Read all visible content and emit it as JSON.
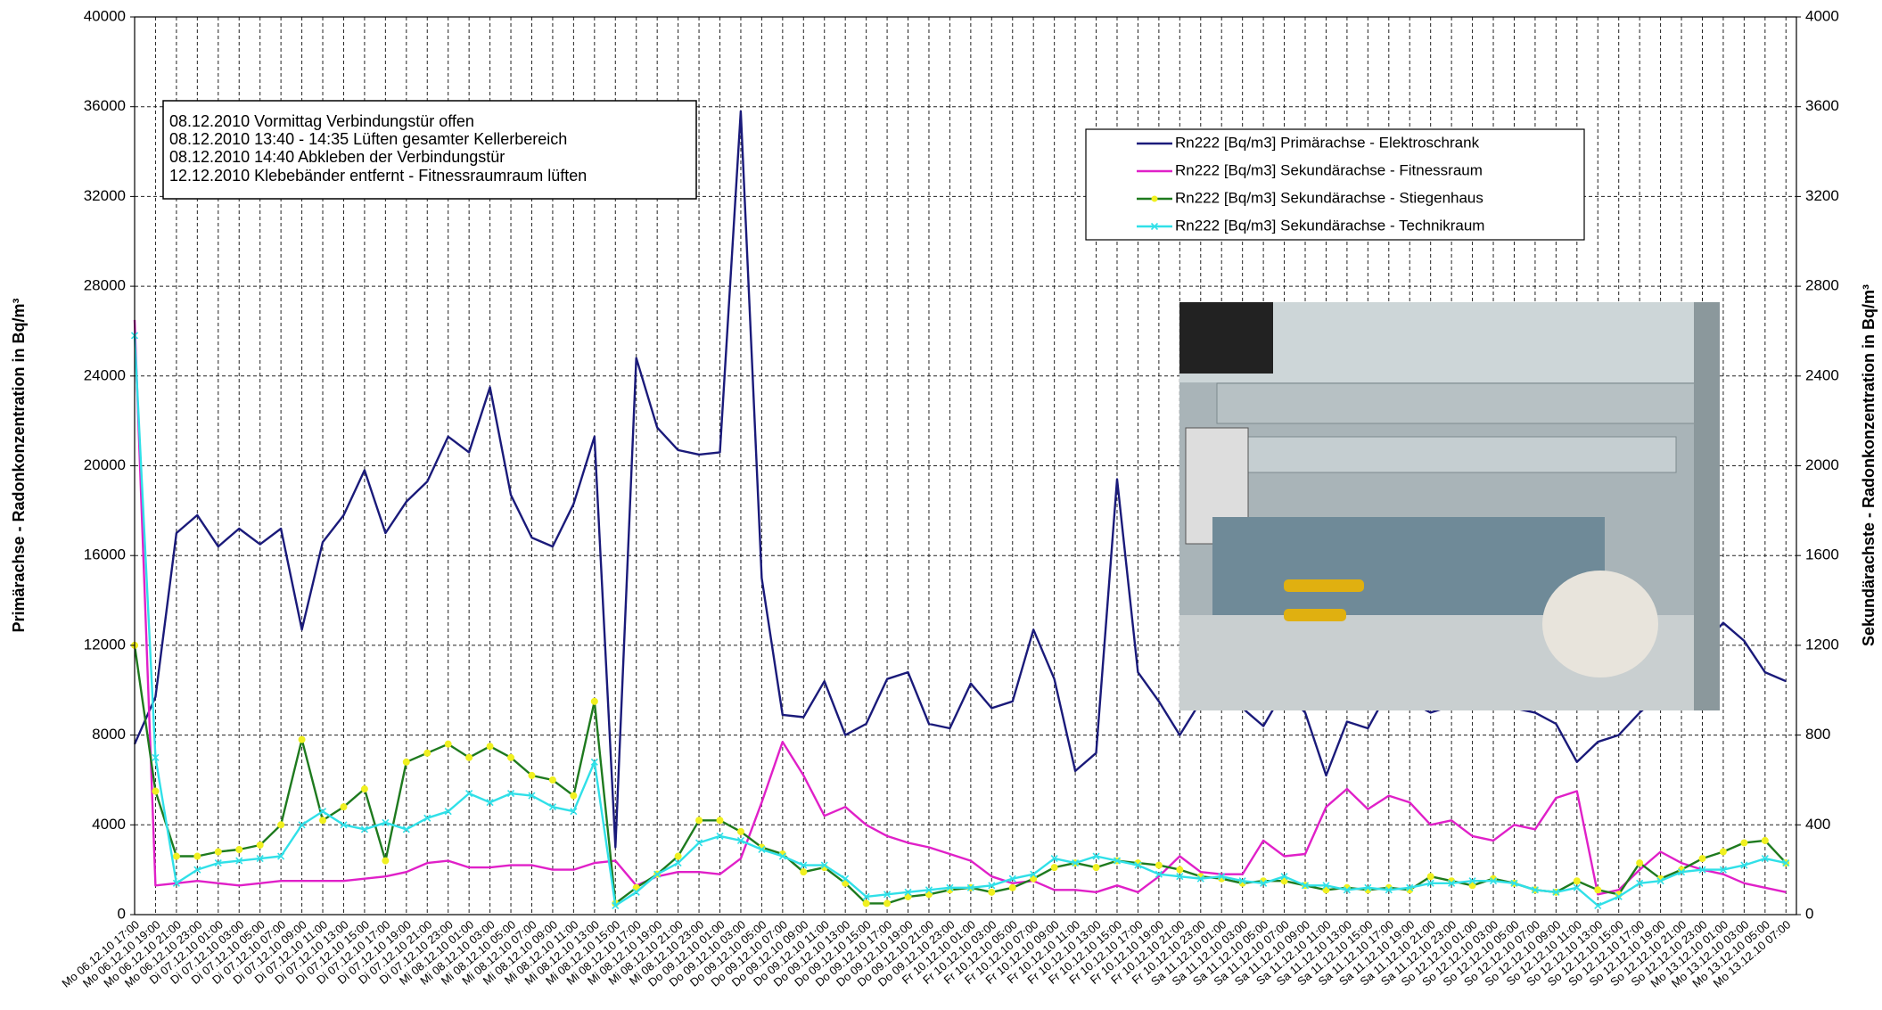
{
  "chart_data": {
    "type": "line",
    "y_label": "Primärachse - Radonkonzentration in Bq/m³",
    "y2_label": "Sekundärachste - Radonkonzentration in Bq/m³",
    "annotations": [
      "08.12.2010 Vormittag Verbindungstür offen",
      "08.12.2010 13:40 - 14:35 Lüften gesamter Kellerbereich",
      "08.12.2010 14:40 Abkleben der Verbindungstür",
      "12.12.2010 Klebebänder entfernt - Fitnessraumraum lüften"
    ],
    "categories": [
      "Mo 06.12.10 17:00",
      "Mo 06.12.10 19:00",
      "Mo 06.12.10 21:00",
      "Mo 06.12.10 23:00",
      "Di 07.12.10 01:00",
      "Di 07.12.10 03:00",
      "Di 07.12.10 05:00",
      "Di 07.12.10 07:00",
      "Di 07.12.10 09:00",
      "Di 07.12.10 11:00",
      "Di 07.12.10 13:00",
      "Di 07.12.10 15:00",
      "Di 07.12.10 17:00",
      "Di 07.12.10 19:00",
      "Di 07.12.10 21:00",
      "Di 07.12.10 23:00",
      "Mi 08.12.10 01:00",
      "Mi 08.12.10 03:00",
      "Mi 08.12.10 05:00",
      "Mi 08.12.10 07:00",
      "Mi 08.12.10 09:00",
      "Mi 08.12.10 11:00",
      "Mi 08.12.10 13:00",
      "Mi 08.12.10 15:00",
      "Mi 08.12.10 17:00",
      "Mi 08.12.10 19:00",
      "Mi 08.12.10 21:00",
      "Mi 08.12.10 23:00",
      "Do 09.12.10 01:00",
      "Do 09.12.10 03:00",
      "Do 09.12.10 05:00",
      "Do 09.12.10 07:00",
      "Do 09.12.10 09:00",
      "Do 09.12.10 11:00",
      "Do 09.12.10 13:00",
      "Do 09.12.10 15:00",
      "Do 09.12.10 17:00",
      "Do 09.12.10 19:00",
      "Do 09.12.10 21:00",
      "Do 09.12.10 23:00",
      "Fr 10.12.10 01:00",
      "Fr 10.12.10 03:00",
      "Fr 10.12.10 05:00",
      "Fr 10.12.10 07:00",
      "Fr 10.12.10 09:00",
      "Fr 10.12.10 11:00",
      "Fr 10.12.10 13:00",
      "Fr 10.12.10 15:00",
      "Fr 10.12.10 17:00",
      "Fr 10.12.10 19:00",
      "Fr 10.12.10 21:00",
      "Fr 10.12.10 23:00",
      "Sa 11.12.10 01:00",
      "Sa 11.12.10 03:00",
      "Sa 11.12.10 05:00",
      "Sa 11.12.10 07:00",
      "Sa 11.12.10 09:00",
      "Sa 11.12.10 11:00",
      "Sa 11.12.10 13:00",
      "Sa 11.12.10 15:00",
      "Sa 11.12.10 17:00",
      "Sa 11.12.10 19:00",
      "Sa 11.12.10 21:00",
      "Sa 11.12.10 23:00",
      "So 12.12.10 01:00",
      "So 12.12.10 03:00",
      "So 12.12.10 05:00",
      "So 12.12.10 07:00",
      "So 12.12.10 09:00",
      "So 12.12.10 11:00",
      "So 12.12.10 13:00",
      "So 12.12.10 15:00",
      "So 12.12.10 17:00",
      "So 12.12.10 19:00",
      "So 12.12.10 21:00",
      "So 12.12.10 23:00",
      "Mo 13.12.10 01:00",
      "Mo 13.12.10 03:00",
      "Mo 13.12.10 05:00",
      "Mo 13.12.10 07:00"
    ],
    "series": [
      {
        "name": "Rn222 [Bq/m3] Primärachse - Elektroschrank",
        "color": "#1a1a7a",
        "marker": "none",
        "values": [
          7600,
          9700,
          17000,
          17800,
          16400,
          17200,
          16500,
          17200,
          12700,
          16600,
          17800,
          19800,
          17000,
          18400,
          19300,
          21300,
          20600,
          23500,
          18700,
          16800,
          16400,
          18300,
          21300,
          3000,
          24800,
          21700,
          20700,
          20500,
          20600,
          35800,
          15000,
          8900,
          8800,
          10400,
          8000,
          8500,
          10500,
          10800,
          8500,
          8300,
          10300,
          9200,
          9500,
          12700,
          10500,
          6400,
          7200,
          19400,
          10800,
          9500,
          8000,
          9500,
          10500,
          9200,
          8400,
          10000,
          9000,
          6200,
          8600,
          8300,
          10000,
          9500,
          9000,
          9300,
          9800,
          9500,
          9200,
          9000,
          8500,
          6800,
          7700,
          8000,
          9000,
          9800,
          10500,
          12000,
          13000,
          12200,
          10800,
          10400
        ]
      },
      {
        "name": "Rn222 [Bq/m3] Sekundärachse - Fitnessraum",
        "color": "#e020c8",
        "axis": "y2",
        "marker": "none",
        "values": [
          2650,
          130,
          140,
          150,
          140,
          130,
          140,
          150,
          150,
          150,
          150,
          160,
          170,
          190,
          230,
          240,
          210,
          210,
          220,
          220,
          200,
          200,
          230,
          240,
          130,
          170,
          190,
          190,
          180,
          250,
          500,
          770,
          620,
          440,
          480,
          400,
          350,
          320,
          300,
          270,
          240,
          170,
          140,
          150,
          110,
          110,
          100,
          130,
          100,
          170,
          260,
          190,
          180,
          180,
          330,
          260,
          270,
          480,
          560,
          470,
          530,
          500,
          400,
          420,
          350,
          330,
          400,
          380,
          520,
          550,
          90,
          110,
          200,
          280,
          230,
          200,
          180,
          140,
          120,
          100
        ]
      },
      {
        "name": "Rn222 [Bq/m3] Sekundärachse - Stiegenhaus",
        "color": "#1e7a1e",
        "axis": "y2",
        "marker": "circle",
        "marker_color": "#f0f020",
        "values": [
          1200,
          550,
          260,
          260,
          280,
          290,
          310,
          400,
          780,
          420,
          480,
          560,
          240,
          680,
          720,
          760,
          700,
          750,
          700,
          620,
          600,
          530,
          950,
          50,
          120,
          180,
          260,
          420,
          420,
          370,
          300,
          270,
          190,
          210,
          140,
          50,
          50,
          80,
          90,
          110,
          120,
          100,
          120,
          160,
          210,
          230,
          210,
          240,
          230,
          220,
          200,
          170,
          160,
          140,
          150,
          150,
          130,
          110,
          120,
          110,
          120,
          110,
          170,
          150,
          130,
          160,
          140,
          110,
          100,
          150,
          110,
          90,
          230,
          160,
          200,
          250,
          280,
          320,
          330,
          230
        ]
      },
      {
        "name": "Rn222 [Bq/m3] Sekundärachse - Technikraum",
        "color": "#30e0e8",
        "axis": "y2",
        "marker": "cross",
        "values": [
          2580,
          700,
          140,
          200,
          230,
          240,
          250,
          260,
          400,
          460,
          400,
          380,
          410,
          380,
          430,
          460,
          540,
          500,
          540,
          530,
          480,
          460,
          680,
          40,
          100,
          180,
          230,
          320,
          350,
          330,
          290,
          260,
          220,
          220,
          160,
          80,
          90,
          100,
          110,
          120,
          120,
          130,
          160,
          180,
          250,
          230,
          260,
          240,
          220,
          180,
          170,
          160,
          170,
          150,
          140,
          170,
          130,
          130,
          110,
          120,
          110,
          120,
          140,
          140,
          150,
          150,
          140,
          110,
          100,
          120,
          40,
          80,
          140,
          150,
          190,
          200,
          200,
          220,
          250,
          230
        ]
      }
    ],
    "ylim": [
      0,
      40000
    ],
    "yticks": [
      0,
      4000,
      8000,
      12000,
      16000,
      20000,
      24000,
      28000,
      32000,
      36000,
      40000
    ],
    "y2lim": [
      0,
      4000
    ],
    "y2ticks": [
      0,
      400,
      800,
      1200,
      1600,
      2000,
      2400,
      2800,
      3200,
      3600,
      4000
    ],
    "grid": true
  }
}
